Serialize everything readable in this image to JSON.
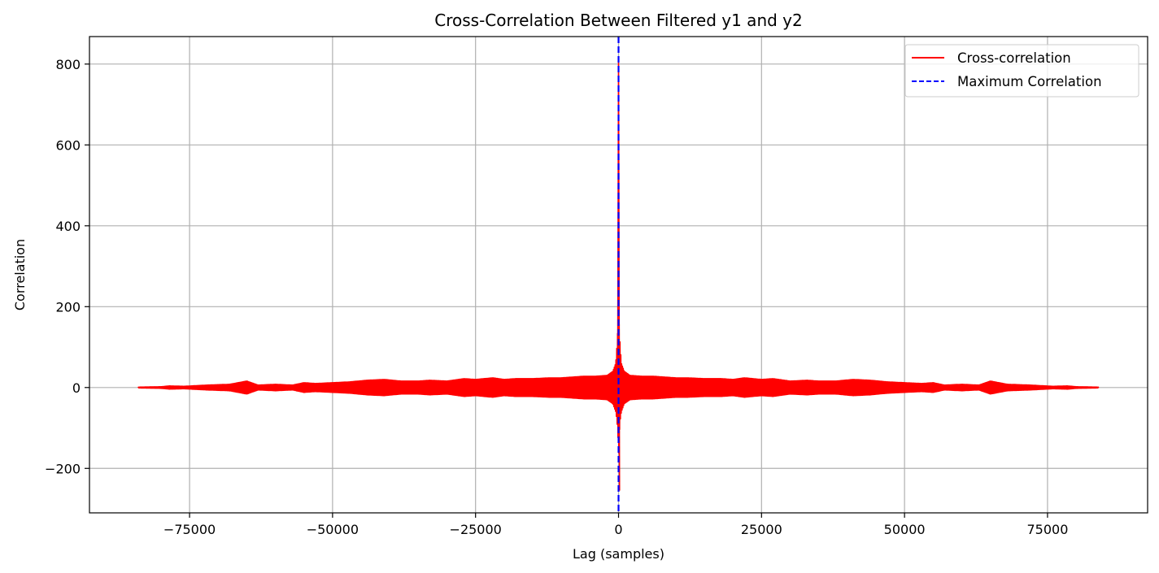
{
  "chart_data": {
    "type": "line",
    "title": "Cross-Correlation Between Filtered y1 and y2",
    "xlabel": "Lag (samples)",
    "ylabel": "Correlation",
    "xlim": [
      -92500,
      92500
    ],
    "ylim": [
      -310,
      868
    ],
    "x_ticks": [
      -75000,
      -50000,
      -25000,
      0,
      25000,
      50000,
      75000
    ],
    "x_tick_labels": [
      "−75000",
      "−50000",
      "−25000",
      "0",
      "25000",
      "50000",
      "75000"
    ],
    "y_ticks": [
      -200,
      0,
      200,
      400,
      600,
      800
    ],
    "y_tick_labels": [
      "−200",
      "0",
      "200",
      "400",
      "600",
      "800"
    ],
    "grid": true,
    "legend_position": "top-right",
    "series": [
      {
        "name": "Cross-correlation",
        "color": "#ff0000",
        "style": "solid",
        "x": [
          -84000,
          -80000,
          -78500,
          -76000,
          -72000,
          -68000,
          -65000,
          -63000,
          -60000,
          -57000,
          -55000,
          -53000,
          -50000,
          -47000,
          -44000,
          -41000,
          -38000,
          -35000,
          -33000,
          -30000,
          -27000,
          -25000,
          -22000,
          -20000,
          -18000,
          -15000,
          -12000,
          -10000,
          -8000,
          -6000,
          -4000,
          -2000,
          -1000,
          -500,
          -300,
          -150,
          -80,
          -40,
          -20,
          -10,
          0,
          10,
          20,
          40,
          80,
          150,
          300,
          500,
          1000,
          2000,
          4000,
          6000,
          8000,
          10000,
          12000,
          15000,
          18000,
          20000,
          22000,
          25000,
          27000,
          30000,
          33000,
          35000,
          38000,
          41000,
          44000,
          47000,
          50000,
          53000,
          55000,
          57000,
          60000,
          63000,
          65000,
          68000,
          72000,
          76000,
          78500,
          80000,
          84000
        ],
        "env_min": [
          -1,
          -2,
          -4,
          -3,
          -6,
          -8,
          -16,
          -6,
          -8,
          -6,
          -12,
          -10,
          -12,
          -14,
          -18,
          -20,
          -16,
          -16,
          -18,
          -16,
          -22,
          -20,
          -24,
          -20,
          -22,
          -22,
          -24,
          -24,
          -26,
          -28,
          -28,
          -30,
          -40,
          -60,
          -80,
          -110,
          -130,
          -160,
          -200,
          -240,
          -255,
          -240,
          -200,
          -160,
          -130,
          -110,
          -80,
          -60,
          -40,
          -30,
          -28,
          -28,
          -26,
          -24,
          -24,
          -22,
          -22,
          -20,
          -24,
          -20,
          -22,
          -16,
          -18,
          -16,
          -16,
          -20,
          -18,
          -14,
          -12,
          -10,
          -12,
          -6,
          -8,
          -6,
          -16,
          -8,
          -6,
          -3,
          -4,
          -2,
          -1
        ],
        "env_max": [
          1,
          2,
          4,
          3,
          6,
          8,
          16,
          6,
          8,
          6,
          12,
          10,
          12,
          14,
          18,
          20,
          16,
          16,
          18,
          16,
          22,
          20,
          24,
          20,
          22,
          22,
          24,
          24,
          26,
          28,
          28,
          30,
          40,
          60,
          100,
          140,
          170,
          180,
          220,
          400,
          810,
          400,
          220,
          180,
          170,
          140,
          100,
          60,
          40,
          30,
          28,
          28,
          26,
          24,
          24,
          22,
          22,
          20,
          24,
          20,
          22,
          16,
          18,
          16,
          16,
          20,
          18,
          14,
          12,
          10,
          12,
          6,
          8,
          6,
          16,
          8,
          6,
          3,
          4,
          2,
          1
        ]
      },
      {
        "name": "Maximum Correlation",
        "color": "#0000ff",
        "style": "dashed",
        "x_value": 0
      }
    ]
  }
}
